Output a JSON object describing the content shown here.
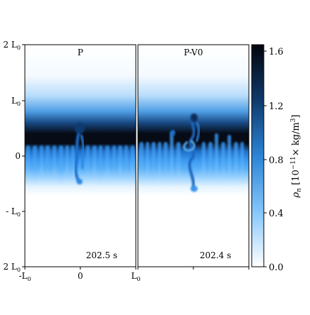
{
  "panels": [
    {
      "title": "P",
      "time": "202.5 s"
    },
    {
      "title": "P-V0",
      "time": "202.4 s"
    }
  ],
  "y_ticks": [
    "2 L",
    "L",
    "0",
    "- L",
    "2 L"
  ],
  "x_ticks": [
    "-L",
    "0",
    "L"
  ],
  "tick_subscript": "0",
  "colorbar": {
    "ticks": [
      "1.6",
      "1.2",
      "0.8",
      "0.4",
      "0.0"
    ],
    "label": "ρ",
    "label_sub": "n",
    "label_units": " [10",
    "label_exp": "−11",
    "label_units2": "× kg/m",
    "label_exp2": "3",
    "label_close": "]"
  },
  "colors": {
    "dark": "#0a0f1e",
    "mid": "#2a8fea",
    "light": "#a9dcff"
  }
}
